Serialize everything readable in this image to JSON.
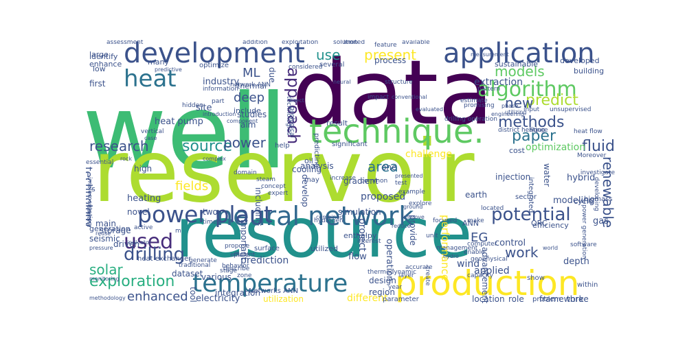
{
  "palette": [
    "#440154",
    "#472d7b",
    "#3b528b",
    "#2c728e",
    "#21918c",
    "#28ae80",
    "#5ec962",
    "#addc30",
    "#fde725"
  ],
  "words": [
    {
      "text": "well",
      "color": "#3dbc74"
    },
    {
      "text": "data",
      "color": "#440154"
    },
    {
      "text": "reservoir",
      "color": "#addc30"
    },
    {
      "text": "resource",
      "color": "#21918c"
    },
    {
      "text": "technique.",
      "color": "#5ec962"
    },
    {
      "text": "production",
      "color": "#fde725"
    },
    {
      "text": "development",
      "color": "#3b528b"
    },
    {
      "text": "application",
      "color": "#3b528b"
    },
    {
      "text": "neural network",
      "color": "#31688e"
    },
    {
      "text": "temperature",
      "color": "#2c728e"
    },
    {
      "text": "power plant",
      "color": "#3b528b"
    },
    {
      "text": "algorithm",
      "color": "#5ec962"
    },
    {
      "text": "heat",
      "color": "#2c728e"
    },
    {
      "text": "used",
      "color": "#472d7b"
    },
    {
      "text": "drilling",
      "color": "#3b528b"
    },
    {
      "text": "exploration",
      "color": "#28ae80"
    },
    {
      "text": "potential",
      "color": "#3b528b"
    },
    {
      "text": "approach",
      "color": "#472d7b"
    },
    {
      "text": "fluid",
      "color": "#3b528b"
    },
    {
      "text": "research",
      "color": "#3b528b"
    },
    {
      "text": "source",
      "color": "#21918c"
    },
    {
      "text": "methods",
      "color": "#3b528b"
    },
    {
      "text": "paper",
      "color": "#2c728e"
    },
    {
      "text": "models",
      "color": "#5ec962"
    },
    {
      "text": "predict",
      "color": "#addc30"
    },
    {
      "text": "new",
      "color": "#3b528b"
    },
    {
      "text": "present",
      "color": "#fde725"
    },
    {
      "text": "use",
      "color": "#21918c"
    },
    {
      "text": "ML",
      "color": "#3b528b"
    },
    {
      "text": "deep",
      "color": "#3b528b"
    },
    {
      "text": "area",
      "color": "#2c728e"
    },
    {
      "text": "power",
      "color": "#3b528b"
    },
    {
      "text": "solar",
      "color": "#28ae80"
    },
    {
      "text": "enhanced",
      "color": "#3b528b"
    },
    {
      "text": "work",
      "color": "#3b528b"
    },
    {
      "text": "EG",
      "color": "#3b528b"
    },
    {
      "text": "renewable",
      "color": "#3b528b"
    },
    {
      "text": "technology",
      "color": "#3b528b"
    },
    {
      "text": "fields",
      "color": "#fde725"
    },
    {
      "text": "industry",
      "color": "#3b528b"
    },
    {
      "text": "heat pump",
      "color": "#3b528b"
    },
    {
      "text": "site",
      "color": "#3b528b"
    },
    {
      "text": "studies",
      "color": "#3b528b"
    },
    {
      "text": "aim",
      "color": "#3b528b"
    },
    {
      "text": "include",
      "color": "#3b528b"
    },
    {
      "text": "thermal",
      "color": "#3b528b"
    },
    {
      "text": "extraction",
      "color": "#3b528b"
    },
    {
      "text": "developed",
      "color": "#3b528b"
    },
    {
      "text": "building",
      "color": "#3b528b"
    },
    {
      "text": "sustainable",
      "color": "#3b528b"
    },
    {
      "text": "process",
      "color": "#3b528b"
    },
    {
      "text": "optimization",
      "color": "#5ec962"
    },
    {
      "text": "challenge",
      "color": "#fde725"
    },
    {
      "text": "analysis",
      "color": "#3b528b"
    },
    {
      "text": "proposed",
      "color": "#3b528b"
    },
    {
      "text": "project",
      "color": "#3b528b"
    },
    {
      "text": "high",
      "color": "#3b528b"
    },
    {
      "text": "heating",
      "color": "#3b528b"
    },
    {
      "text": "novel",
      "color": "#3b528b"
    },
    {
      "text": "modeling",
      "color": "#3b528b"
    },
    {
      "text": "hybrid",
      "color": "#3b528b"
    },
    {
      "text": "control",
      "color": "#3b528b"
    },
    {
      "text": "prediction",
      "color": "#3b528b"
    },
    {
      "text": "wind",
      "color": "#3b528b"
    },
    {
      "text": "applied",
      "color": "#3b528b"
    },
    {
      "text": "depth",
      "color": "#3b528b"
    },
    {
      "text": "three",
      "color": "#3b528b"
    },
    {
      "text": "framework",
      "color": "#3b528b"
    },
    {
      "text": "location",
      "color": "#3b528b"
    },
    {
      "text": "role",
      "color": "#3b528b"
    },
    {
      "text": "different",
      "color": "#fde725"
    },
    {
      "text": "utilization",
      "color": "#fde725"
    },
    {
      "text": "electricity",
      "color": "#3b528b"
    },
    {
      "text": "gradient",
      "color": "#3b528b"
    },
    {
      "text": "flow",
      "color": "#3b528b"
    },
    {
      "text": "design",
      "color": "#3b528b"
    },
    {
      "text": "region",
      "color": "#3b528b"
    },
    {
      "text": "operation",
      "color": "#3b528b"
    },
    {
      "text": "performance",
      "color": "#fde725"
    },
    {
      "text": "earth",
      "color": "#3b528b"
    },
    {
      "text": "simulation",
      "color": "#3b528b"
    },
    {
      "text": "cooling",
      "color": "#3b528b"
    },
    {
      "text": "develop",
      "color": "#3b528b"
    },
    {
      "text": "important",
      "color": "#3b528b"
    },
    {
      "text": "including",
      "color": "#3b528b"
    },
    {
      "text": "dataset",
      "color": "#3b528b"
    },
    {
      "text": "various",
      "color": "#3b528b"
    },
    {
      "text": "tool",
      "color": "#3b528b"
    },
    {
      "text": "integration",
      "color": "#3b528b"
    },
    {
      "text": "storage",
      "color": "#3b528b"
    },
    {
      "text": "seismic",
      "color": "#3b528b"
    },
    {
      "text": "driven",
      "color": "#3b528b"
    },
    {
      "text": "main",
      "color": "#3b528b"
    },
    {
      "text": "first",
      "color": "#3b528b"
    },
    {
      "text": "large",
      "color": "#3b528b"
    },
    {
      "text": "low",
      "color": "#3b528b"
    },
    {
      "text": "enhance",
      "color": "#3b528b"
    },
    {
      "text": "identify",
      "color": "#3b528b"
    },
    {
      "text": "many",
      "color": "#3b528b"
    },
    {
      "text": "optimize",
      "color": "#3b528b"
    },
    {
      "text": "gas",
      "color": "#3b528b"
    },
    {
      "text": "ORC",
      "color": "#3b528b"
    },
    {
      "text": "cycle",
      "color": "#3b528b"
    },
    {
      "text": "oil",
      "color": "#3b528b"
    },
    {
      "text": "result",
      "color": "#3b528b"
    },
    {
      "text": "cost",
      "color": "#3b528b"
    },
    {
      "text": "injection",
      "color": "#3b528b"
    },
    {
      "text": "geological",
      "color": "#3b528b"
    },
    {
      "text": "predicting",
      "color": "#3b528b"
    },
    {
      "text": "technologies",
      "color": "#3b528b"
    },
    {
      "text": "several",
      "color": "#3b528b"
    },
    {
      "text": "due",
      "color": "#3b528b"
    },
    {
      "text": "two",
      "color": "#3b528b"
    },
    {
      "text": "one",
      "color": "#3b528b"
    },
    {
      "text": "provide",
      "color": "#3b528b"
    },
    {
      "text": "advancement",
      "color": "#3b528b"
    },
    {
      "text": "generation",
      "color": "#3b528b"
    },
    {
      "text": "efficiency",
      "color": "#3b528b"
    },
    {
      "text": "water",
      "color": "#3b528b"
    },
    {
      "text": "sector",
      "color": "#3b528b"
    },
    {
      "text": "integrated",
      "color": "#3b528b"
    },
    {
      "text": "biomass",
      "color": "#3b528b"
    },
    {
      "text": "Networks ANN",
      "color": "#3b528b"
    },
    {
      "text": "ANN",
      "color": "#3b528b"
    },
    {
      "text": "enthalpy",
      "color": "#3b528b"
    },
    {
      "text": "utilized",
      "color": "#3b528b"
    },
    {
      "text": "hydrogen",
      "color": "#3b528b"
    },
    {
      "text": "surface",
      "color": "#3b528b"
    },
    {
      "text": "help",
      "color": "#3b528b"
    },
    {
      "text": "significant",
      "color": "#3b528b"
    },
    {
      "text": "may",
      "color": "#3b528b"
    },
    {
      "text": "test",
      "color": "#3b528b"
    },
    {
      "text": "parameter",
      "color": "#3b528b"
    },
    {
      "text": "problem",
      "color": "#3b528b"
    },
    {
      "text": "within",
      "color": "#3b528b"
    },
    {
      "text": "show",
      "color": "#3b528b"
    },
    {
      "text": "time",
      "color": "#3b528b"
    },
    {
      "text": "s",
      "color": "#3b528b"
    },
    {
      "text": "focused",
      "color": "#3b528b"
    },
    {
      "text": "located",
      "color": "#3b528b"
    },
    {
      "text": "make",
      "color": "#3b528b"
    },
    {
      "text": "increase",
      "color": "#3b528b"
    },
    {
      "text": "interest",
      "color": "#3b528b"
    },
    {
      "text": "describe",
      "color": "#3b528b"
    },
    {
      "text": "efficient",
      "color": "#3b528b"
    },
    {
      "text": "traditional",
      "color": "#3b528b"
    },
    {
      "text": "solution",
      "color": "#3b528b"
    },
    {
      "text": "feature",
      "color": "#3b528b"
    },
    {
      "text": "available",
      "color": "#3b528b"
    },
    {
      "text": "limited",
      "color": "#3b528b"
    },
    {
      "text": "exploitation",
      "color": "#3b528b"
    },
    {
      "text": "addition",
      "color": "#3b528b"
    },
    {
      "text": "assessment",
      "color": "#3b528b"
    },
    {
      "text": "essential",
      "color": "#3b528b"
    },
    {
      "text": "considered",
      "color": "#3b528b"
    },
    {
      "text": "network ANN",
      "color": "#3b528b"
    },
    {
      "text": "information",
      "color": "#3b528b"
    },
    {
      "text": "part",
      "color": "#3b528b"
    },
    {
      "text": "hidden",
      "color": "#3b528b"
    },
    {
      "text": "structure",
      "color": "#3b528b"
    },
    {
      "text": "pattern",
      "color": "#3b528b"
    },
    {
      "text": "impact",
      "color": "#3b528b"
    },
    {
      "text": "estimate",
      "color": "#3b528b"
    },
    {
      "text": "promising",
      "color": "#3b528b"
    },
    {
      "text": "input",
      "color": "#3b528b"
    },
    {
      "text": "drilling operation",
      "color": "#3b528b"
    },
    {
      "text": "unsupervised",
      "color": "#3b528b"
    },
    {
      "text": "Figure",
      "color": "#3b528b"
    },
    {
      "text": "district heating",
      "color": "#3b528b"
    },
    {
      "text": "heat flow",
      "color": "#3b528b"
    },
    {
      "text": "implementation",
      "color": "#3b528b"
    },
    {
      "text": "complex",
      "color": "#3b528b"
    },
    {
      "text": "steam",
      "color": "#3b528b"
    },
    {
      "text": "concept",
      "color": "#3b528b"
    },
    {
      "text": "expert",
      "color": "#3b528b"
    },
    {
      "text": "common",
      "color": "#3b528b"
    },
    {
      "text": "example",
      "color": "#3b528b"
    },
    {
      "text": "explore",
      "color": "#3b528b"
    },
    {
      "text": "Moreover",
      "color": "#3b528b"
    },
    {
      "text": "investigate",
      "color": "#3b528b"
    },
    {
      "text": "developing",
      "color": "#3b528b"
    },
    {
      "text": "power generation",
      "color": "#3b528b"
    },
    {
      "text": "software",
      "color": "#3b528b"
    },
    {
      "text": "computer",
      "color": "#3b528b"
    },
    {
      "text": "enable",
      "color": "#3b528b"
    },
    {
      "text": "geophysical",
      "color": "#3b528b"
    },
    {
      "text": "capacity",
      "color": "#3b528b"
    },
    {
      "text": "accurate",
      "color": "#3b528b"
    },
    {
      "text": "layer",
      "color": "#3b528b"
    },
    {
      "text": "thermodynamic",
      "color": "#3b528b"
    },
    {
      "text": "create",
      "color": "#3b528b"
    },
    {
      "text": "year",
      "color": "#3b528b"
    },
    {
      "text": "generate",
      "color": "#3b528b"
    },
    {
      "text": "propose",
      "color": "#3b528b"
    },
    {
      "text": "stage",
      "color": "#3b528b"
    },
    {
      "text": "behavior",
      "color": "#3b528b"
    },
    {
      "text": "zone",
      "color": "#3b528b"
    },
    {
      "text": "monitoring",
      "color": "#3b528b"
    },
    {
      "text": "methodology",
      "color": "#3b528b"
    },
    {
      "text": "pressure",
      "color": "#3b528b"
    },
    {
      "text": "reuse",
      "color": "#3b528b"
    },
    {
      "text": "indicator",
      "color": "#3b528b"
    },
    {
      "text": "rock",
      "color": "#3b528b"
    },
    {
      "text": "vertical",
      "color": "#3b528b"
    },
    {
      "text": "case",
      "color": "#3b528b"
    },
    {
      "text": "demand",
      "color": "#3b528b"
    },
    {
      "text": "domain",
      "color": "#3b528b"
    },
    {
      "text": "heat exchanger",
      "color": "#3b528b"
    },
    {
      "text": "presented",
      "color": "#3b528b"
    },
    {
      "text": "ground",
      "color": "#3b528b"
    },
    {
      "text": "improve",
      "color": "#3b528b"
    },
    {
      "text": "reduce",
      "color": "#3b528b"
    },
    {
      "text": "unit",
      "color": "#3b528b"
    },
    {
      "text": "management",
      "color": "#3b528b"
    },
    {
      "text": "hydro",
      "color": "#3b528b"
    },
    {
      "text": "predictive",
      "color": "#3b528b"
    },
    {
      "text": "introduction",
      "color": "#3b528b"
    },
    {
      "text": "component",
      "color": "#3b528b"
    },
    {
      "text": "direct",
      "color": "#3b528b"
    },
    {
      "text": "neural",
      "color": "#3b528b"
    },
    {
      "text": "conventional",
      "color": "#3b528b"
    },
    {
      "text": "evaluated",
      "color": "#3b528b"
    },
    {
      "text": "phase",
      "color": "#3b528b"
    },
    {
      "text": "utilizing",
      "color": "#3b528b"
    },
    {
      "text": "engineering",
      "color": "#3b528b"
    },
    {
      "text": "measurement",
      "color": "#3b528b"
    },
    {
      "text": "world",
      "color": "#3b528b"
    },
    {
      "text": "R",
      "color": "#3b528b"
    },
    {
      "text": "combined",
      "color": "#3b528b"
    },
    {
      "text": "active",
      "color": "#3b528b"
    },
    {
      "text": "plant",
      "color": "#3b528b"
    },
    {
      "text": "m",
      "color": "#3b528b"
    }
  ]
}
